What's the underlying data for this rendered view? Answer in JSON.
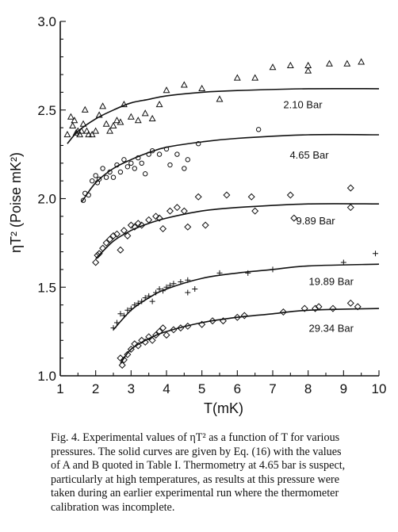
{
  "chart_data": {
    "type": "scatter",
    "title": "",
    "xlabel": "T(mK)",
    "ylabel": "ηT² (Poise mK²)",
    "xlim": [
      1,
      10
    ],
    "ylim": [
      1.0,
      3.0
    ],
    "x_ticks": [
      1,
      2,
      3,
      4,
      5,
      6,
      7,
      8,
      9,
      10
    ],
    "y_ticks": [
      "1.0",
      "1.5",
      "2.0",
      "2.5",
      "3.0"
    ],
    "grid": false,
    "series": [
      {
        "name": "2.10 Bar",
        "marker": "triangle",
        "points": [
          [
            1.2,
            2.36
          ],
          [
            1.3,
            2.46
          ],
          [
            1.35,
            2.41
          ],
          [
            1.4,
            2.44
          ],
          [
            1.45,
            2.37
          ],
          [
            1.5,
            2.38
          ],
          [
            1.55,
            2.36
          ],
          [
            1.6,
            2.38
          ],
          [
            1.65,
            2.42
          ],
          [
            1.7,
            2.5
          ],
          [
            1.75,
            2.38
          ],
          [
            1.8,
            2.36
          ],
          [
            1.9,
            2.36
          ],
          [
            2.0,
            2.38
          ],
          [
            2.1,
            2.47
          ],
          [
            2.2,
            2.52
          ],
          [
            2.3,
            2.42
          ],
          [
            2.4,
            2.38
          ],
          [
            2.5,
            2.41
          ],
          [
            2.6,
            2.44
          ],
          [
            2.7,
            2.43
          ],
          [
            2.8,
            2.53
          ],
          [
            3.0,
            2.46
          ],
          [
            3.2,
            2.44
          ],
          [
            3.4,
            2.48
          ],
          [
            3.6,
            2.45
          ],
          [
            3.8,
            2.53
          ],
          [
            4.0,
            2.61
          ],
          [
            4.5,
            2.64
          ],
          [
            5.0,
            2.62
          ],
          [
            5.5,
            2.56
          ],
          [
            6.0,
            2.68
          ],
          [
            6.5,
            2.68
          ],
          [
            7.0,
            2.74
          ],
          [
            7.5,
            2.75
          ],
          [
            8.0,
            2.72
          ],
          [
            8.0,
            2.75
          ],
          [
            8.6,
            2.76
          ],
          [
            9.1,
            2.76
          ],
          [
            9.5,
            2.77
          ]
        ],
        "fit": [
          [
            1.2,
            2.31
          ],
          [
            1.5,
            2.38
          ],
          [
            2.0,
            2.45
          ],
          [
            2.5,
            2.5
          ],
          [
            3.0,
            2.54
          ],
          [
            3.5,
            2.56
          ],
          [
            4.0,
            2.58
          ],
          [
            5.0,
            2.6
          ],
          [
            6.0,
            2.61
          ],
          [
            8.0,
            2.62
          ],
          [
            10.0,
            2.62
          ]
        ]
      },
      {
        "name": "4.65 Bar",
        "marker": "circle",
        "points": [
          [
            1.65,
            1.99
          ],
          [
            1.7,
            2.03
          ],
          [
            1.8,
            2.02
          ],
          [
            1.9,
            2.1
          ],
          [
            2.0,
            2.13
          ],
          [
            2.05,
            2.09
          ],
          [
            2.1,
            2.11
          ],
          [
            2.2,
            2.17
          ],
          [
            2.3,
            2.12
          ],
          [
            2.4,
            2.15
          ],
          [
            2.5,
            2.12
          ],
          [
            2.6,
            2.19
          ],
          [
            2.7,
            2.15
          ],
          [
            2.8,
            2.22
          ],
          [
            2.9,
            2.18
          ],
          [
            3.0,
            2.2
          ],
          [
            3.1,
            2.17
          ],
          [
            3.2,
            2.23
          ],
          [
            3.3,
            2.2
          ],
          [
            3.4,
            2.14
          ],
          [
            3.5,
            2.25
          ],
          [
            3.6,
            2.27
          ],
          [
            3.8,
            2.25
          ],
          [
            4.0,
            2.28
          ],
          [
            4.1,
            2.19
          ],
          [
            4.3,
            2.25
          ],
          [
            4.5,
            2.17
          ],
          [
            4.6,
            2.22
          ],
          [
            4.9,
            2.31
          ],
          [
            6.6,
            2.39
          ]
        ],
        "fit": [
          [
            1.6,
            1.98
          ],
          [
            2.0,
            2.09
          ],
          [
            2.5,
            2.17
          ],
          [
            3.0,
            2.22
          ],
          [
            3.5,
            2.26
          ],
          [
            4.0,
            2.29
          ],
          [
            5.0,
            2.32
          ],
          [
            6.0,
            2.34
          ],
          [
            8.0,
            2.36
          ],
          [
            10.0,
            2.36
          ]
        ]
      },
      {
        "name": "9.89 Bar",
        "marker": "diamond",
        "points": [
          [
            2.0,
            1.64
          ],
          [
            2.05,
            1.68
          ],
          [
            2.1,
            1.69
          ],
          [
            2.2,
            1.72
          ],
          [
            2.3,
            1.75
          ],
          [
            2.4,
            1.77
          ],
          [
            2.5,
            1.79
          ],
          [
            2.6,
            1.8
          ],
          [
            2.7,
            1.71
          ],
          [
            2.8,
            1.82
          ],
          [
            2.9,
            1.79
          ],
          [
            3.0,
            1.85
          ],
          [
            3.1,
            1.84
          ],
          [
            3.2,
            1.86
          ],
          [
            3.3,
            1.85
          ],
          [
            3.5,
            1.88
          ],
          [
            3.7,
            1.9
          ],
          [
            3.8,
            1.89
          ],
          [
            3.9,
            1.83
          ],
          [
            4.1,
            1.93
          ],
          [
            4.3,
            1.95
          ],
          [
            4.5,
            1.93
          ],
          [
            4.6,
            1.84
          ],
          [
            4.9,
            2.01
          ],
          [
            5.1,
            1.85
          ],
          [
            5.7,
            2.02
          ],
          [
            6.4,
            2.01
          ],
          [
            6.5,
            1.93
          ],
          [
            7.5,
            2.02
          ],
          [
            7.6,
            1.89
          ],
          [
            9.2,
            2.06
          ],
          [
            9.2,
            1.95
          ]
        ],
        "fit": [
          [
            2.0,
            1.66
          ],
          [
            2.5,
            1.76
          ],
          [
            3.0,
            1.82
          ],
          [
            3.5,
            1.86
          ],
          [
            4.0,
            1.89
          ],
          [
            5.0,
            1.93
          ],
          [
            6.0,
            1.95
          ],
          [
            8.0,
            1.97
          ],
          [
            10.0,
            1.97
          ]
        ]
      },
      {
        "name": "19.89 Bar",
        "marker": "plus",
        "points": [
          [
            2.5,
            1.27
          ],
          [
            2.6,
            1.3
          ],
          [
            2.7,
            1.35
          ],
          [
            2.8,
            1.34
          ],
          [
            2.9,
            1.37
          ],
          [
            3.0,
            1.38
          ],
          [
            3.1,
            1.4
          ],
          [
            3.2,
            1.41
          ],
          [
            3.3,
            1.42
          ],
          [
            3.4,
            1.44
          ],
          [
            3.5,
            1.45
          ],
          [
            3.6,
            1.42
          ],
          [
            3.7,
            1.47
          ],
          [
            3.8,
            1.49
          ],
          [
            3.9,
            1.48
          ],
          [
            4.0,
            1.5
          ],
          [
            4.1,
            1.51
          ],
          [
            4.2,
            1.52
          ],
          [
            4.4,
            1.53
          ],
          [
            4.6,
            1.54
          ],
          [
            4.6,
            1.47
          ],
          [
            4.8,
            1.49
          ],
          [
            5.5,
            1.58
          ],
          [
            6.3,
            1.58
          ],
          [
            7.0,
            1.6
          ],
          [
            9.0,
            1.64
          ],
          [
            9.9,
            1.69
          ]
        ],
        "fit": [
          [
            2.5,
            1.26
          ],
          [
            3.0,
            1.37
          ],
          [
            3.5,
            1.44
          ],
          [
            4.0,
            1.49
          ],
          [
            5.0,
            1.55
          ],
          [
            6.0,
            1.58
          ],
          [
            7.0,
            1.6
          ],
          [
            8.0,
            1.62
          ],
          [
            10.0,
            1.63
          ]
        ]
      },
      {
        "name": "29.34 Bar",
        "marker": "diamond",
        "points": [
          [
            2.7,
            1.1
          ],
          [
            2.75,
            1.06
          ],
          [
            2.8,
            1.09
          ],
          [
            2.9,
            1.12
          ],
          [
            3.0,
            1.15
          ],
          [
            3.1,
            1.18
          ],
          [
            3.2,
            1.17
          ],
          [
            3.3,
            1.2
          ],
          [
            3.4,
            1.19
          ],
          [
            3.5,
            1.22
          ],
          [
            3.6,
            1.2
          ],
          [
            3.7,
            1.23
          ],
          [
            3.8,
            1.25
          ],
          [
            3.9,
            1.27
          ],
          [
            4.0,
            1.23
          ],
          [
            4.2,
            1.26
          ],
          [
            4.4,
            1.27
          ],
          [
            4.6,
            1.28
          ],
          [
            5.0,
            1.29
          ],
          [
            5.3,
            1.31
          ],
          [
            5.6,
            1.31
          ],
          [
            6.0,
            1.33
          ],
          [
            6.2,
            1.34
          ],
          [
            7.3,
            1.36
          ],
          [
            7.9,
            1.38
          ],
          [
            8.2,
            1.38
          ],
          [
            8.3,
            1.39
          ],
          [
            8.7,
            1.38
          ],
          [
            9.2,
            1.41
          ],
          [
            9.4,
            1.39
          ]
        ],
        "fit": [
          [
            2.7,
            1.07
          ],
          [
            3.0,
            1.15
          ],
          [
            3.5,
            1.21
          ],
          [
            4.0,
            1.25
          ],
          [
            5.0,
            1.3
          ],
          [
            6.0,
            1.33
          ],
          [
            7.0,
            1.35
          ],
          [
            8.0,
            1.37
          ],
          [
            10.0,
            1.38
          ]
        ]
      }
    ]
  },
  "caption": {
    "line1": "Fig. 4. Experimental values of ηT² as a function of T for various",
    "line2": "pressures. The solid curves are given by Eq. (16) with the values",
    "line3": "of A and B quoted in Table I. Thermometry at 4.65 bar is suspect,",
    "line4": "particularly at high temperatures, as results at this pressure were",
    "line5": "taken during an earlier experimental run where the thermometer",
    "line6": "calibration was incomplete."
  }
}
